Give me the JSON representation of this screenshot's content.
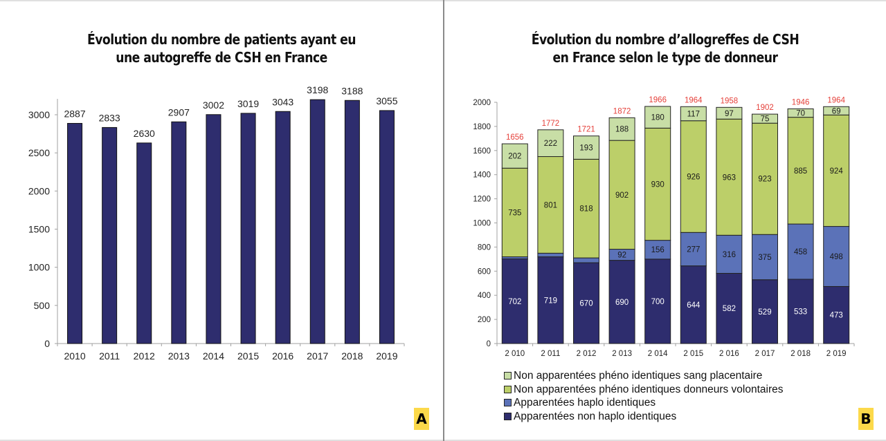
{
  "panels": {
    "a": {
      "badge": "A"
    },
    "b": {
      "badge": "B"
    }
  },
  "chart_data": [
    {
      "type": "bar",
      "title": "Évolution du nombre de patients ayant eu une autogreffe de CSH en France",
      "title_lines": [
        "Évolution du nombre de patients ayant eu",
        "une autogreffe de CSH en France"
      ],
      "xlabel": "",
      "ylabel": "",
      "categories": [
        "2010",
        "2011",
        "2012",
        "2013",
        "2014",
        "2015",
        "2016",
        "2017",
        "2018",
        "2019"
      ],
      "values": [
        2887,
        2833,
        2630,
        2907,
        3002,
        3019,
        3043,
        3198,
        3188,
        3055
      ],
      "data_labels": [
        "2887",
        "2833",
        "2630",
        "2907",
        "3002",
        "3019",
        "3043",
        "3198",
        "3188",
        "3055"
      ],
      "yticks": [
        0,
        500,
        1000,
        1500,
        2000,
        2500,
        3000
      ],
      "ylim": [
        0,
        3200
      ],
      "grid": false,
      "legend": "none",
      "colors": {
        "bar": "#2e2d6e",
        "bar_edge": "#111111",
        "axis": "#a0a0a0"
      }
    },
    {
      "type": "bar",
      "stacked": true,
      "title": "Évolution du nombre d'allogreffes de CSH en France selon le type de donneur",
      "title_lines": [
        "Évolution du nombre d’allogreffes de CSH",
        "en France selon le type de donneur"
      ],
      "xlabel": "",
      "ylabel": "",
      "categories": [
        "2 010",
        "2 011",
        "2 012",
        "2 013",
        "2 014",
        "2 015",
        "2 016",
        "2 017",
        "2 018",
        "2 019"
      ],
      "series": [
        {
          "name": "Apparentées non haplo identiques",
          "color": "#2e2d6e",
          "label_color": "#ffffff",
          "values": [
            702,
            719,
            670,
            690,
            700,
            644,
            582,
            529,
            533,
            473
          ]
        },
        {
          "name": "Apparentées haplo identiques",
          "color": "#5b72b8",
          "label_color": "#1a1a1a",
          "values": [
            17,
            30,
            40,
            92,
            156,
            277,
            316,
            375,
            458,
            498
          ]
        },
        {
          "name": "Non apparentées phéno identiques donneurs volontaires",
          "color": "#bccf69",
          "label_color": "#1a1a1a",
          "values": [
            735,
            801,
            818,
            902,
            930,
            926,
            963,
            923,
            885,
            924
          ]
        },
        {
          "name": "Non apparentées phéno identiques sang placentaire",
          "color": "#c8dea6",
          "label_color": "#1a1a1a",
          "values": [
            202,
            222,
            193,
            188,
            180,
            117,
            97,
            75,
            70,
            69
          ]
        }
      ],
      "totals": [
        1656,
        1772,
        1721,
        1872,
        1966,
        1964,
        1958,
        1902,
        1946,
        1964
      ],
      "total_label_color": "#e5403a",
      "yticks": [
        0,
        200,
        400,
        600,
        800,
        1000,
        1200,
        1400,
        1600,
        1800,
        2000
      ],
      "ylim": [
        0,
        2000
      ],
      "grid": false,
      "legend": "bottom",
      "legend_order": [
        "Non apparentées phéno identiques sang placentaire",
        "Non apparentées phéno identiques donneurs volontaires",
        "Apparentées haplo identiques",
        "Apparentées non haplo identiques"
      ],
      "legend_colors": [
        "#c8dea6",
        "#bccf69",
        "#5b72b8",
        "#2e2d6e"
      ]
    }
  ]
}
